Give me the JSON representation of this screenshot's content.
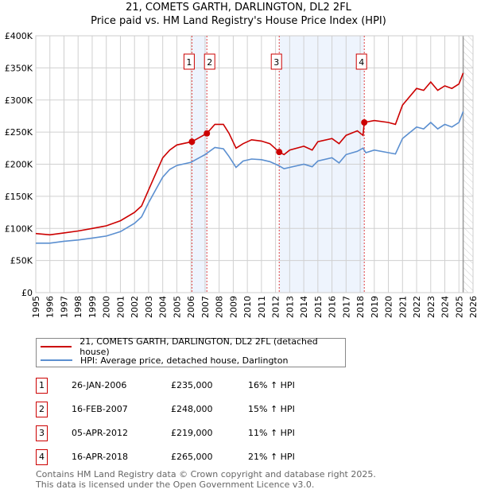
{
  "chart_data": {
    "type": "line",
    "title": "21, COMETS GARTH, DARLINGTON, DL2 2FL",
    "subtitle": "Price paid vs. HM Land Registry's House Price Index (HPI)",
    "xlim": [
      1995,
      2026
    ],
    "ylim": [
      0,
      400000
    ],
    "x_ticks": [
      "1995",
      "1996",
      "1997",
      "1998",
      "1999",
      "2000",
      "2001",
      "2002",
      "2003",
      "2004",
      "2005",
      "2006",
      "2007",
      "2008",
      "2009",
      "2010",
      "2011",
      "2012",
      "2013",
      "2014",
      "2015",
      "2016",
      "2017",
      "2018",
      "2019",
      "2020",
      "2021",
      "2022",
      "2023",
      "2024",
      "2025",
      "2026"
    ],
    "y_ticks": [
      {
        "v": 0,
        "label": "£0"
      },
      {
        "v": 50000,
        "label": "£50K"
      },
      {
        "v": 100000,
        "label": "£100K"
      },
      {
        "v": 150000,
        "label": "£150K"
      },
      {
        "v": 200000,
        "label": "£200K"
      },
      {
        "v": 250000,
        "label": "£250K"
      },
      {
        "v": 300000,
        "label": "£300K"
      },
      {
        "v": 350000,
        "label": "£350K"
      },
      {
        "v": 400000,
        "label": "£400K"
      }
    ],
    "grid": true,
    "series": [
      {
        "name": "21, COMETS GARTH, DARLINGTON, DL2 2FL (detached house)",
        "color": "#cc0000",
        "x": [
          1995,
          1996,
          1997,
          1998,
          1999,
          2000,
          2001,
          2002,
          2002.5,
          2003,
          2003.5,
          2004,
          2004.5,
          2005,
          2006.07,
          2007.13,
          2007.7,
          2008.3,
          2008.7,
          2009.2,
          2009.7,
          2010.3,
          2011,
          2011.6,
          2012.26,
          2012.6,
          2013,
          2014,
          2014.6,
          2015,
          2016,
          2016.5,
          2017,
          2017.8,
          2018.2,
          2018.29,
          2019,
          2020,
          2020.5,
          2021,
          2022,
          2022.5,
          2023,
          2023.5,
          2024,
          2024.5,
          2025,
          2025.3
        ],
        "y": [
          92000,
          90000,
          93000,
          96000,
          100000,
          104000,
          112000,
          125000,
          135000,
          160000,
          185000,
          210000,
          222000,
          230000,
          235000,
          248000,
          262000,
          262000,
          248000,
          225000,
          232000,
          238000,
          236000,
          232000,
          219000,
          215000,
          222000,
          228000,
          222000,
          235000,
          240000,
          232000,
          245000,
          252000,
          245000,
          265000,
          268000,
          265000,
          262000,
          292000,
          318000,
          315000,
          328000,
          315000,
          322000,
          318000,
          325000,
          342000
        ]
      },
      {
        "name": "HPI: Average price, detached house, Darlington",
        "color": "#5b8fd0",
        "x": [
          1995,
          1996,
          1997,
          1998,
          1999,
          2000,
          2001,
          2002,
          2002.5,
          2003,
          2003.5,
          2004,
          2004.5,
          2005,
          2006,
          2007,
          2007.7,
          2008.3,
          2008.7,
          2009.2,
          2009.7,
          2010.3,
          2011,
          2011.6,
          2012.2,
          2012.6,
          2013,
          2014,
          2014.6,
          2015,
          2016,
          2016.5,
          2017,
          2017.8,
          2018.2,
          2018.4,
          2019,
          2020,
          2020.5,
          2021,
          2022,
          2022.5,
          2023,
          2023.5,
          2024,
          2024.5,
          2025,
          2025.3
        ],
        "y": [
          77000,
          77000,
          80000,
          82000,
          85000,
          88000,
          95000,
          108000,
          118000,
          140000,
          160000,
          180000,
          192000,
          198000,
          203000,
          215000,
          226000,
          224000,
          212000,
          195000,
          205000,
          208000,
          207000,
          204000,
          198000,
          193000,
          195000,
          200000,
          196000,
          205000,
          210000,
          202000,
          215000,
          220000,
          225000,
          218000,
          222000,
          218000,
          216000,
          240000,
          258000,
          255000,
          265000,
          255000,
          262000,
          258000,
          265000,
          282000
        ]
      }
    ],
    "sales": [
      {
        "n": "1",
        "date": "26-JAN-2006",
        "x": 2006.07,
        "price": 235000,
        "price_label": "£235,000",
        "hpi": "16% ↑ HPI"
      },
      {
        "n": "2",
        "date": "16-FEB-2007",
        "x": 2007.13,
        "price": 248000,
        "price_label": "£248,000",
        "hpi": "15% ↑ HPI"
      },
      {
        "n": "3",
        "date": "05-APR-2012",
        "x": 2012.26,
        "price": 219000,
        "price_label": "£219,000",
        "hpi": "11% ↑ HPI"
      },
      {
        "n": "4",
        "date": "16-APR-2018",
        "x": 2018.29,
        "price": 265000,
        "price_label": "£265,000",
        "hpi": "21% ↑ HPI"
      }
    ],
    "projection_start": 2025.3
  },
  "footer": {
    "line1": "Contains HM Land Registry data © Crown copyright and database right 2025.",
    "line2": "This data is licensed under the Open Government Licence v3.0."
  }
}
